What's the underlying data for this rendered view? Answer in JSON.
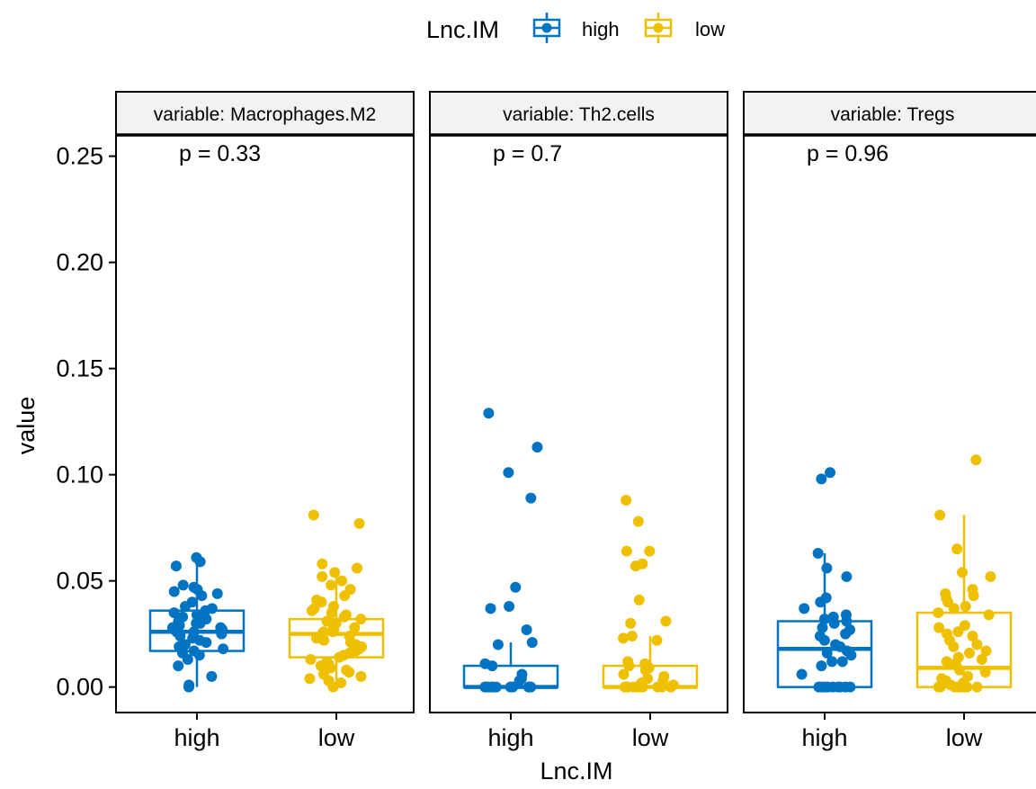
{
  "legend": {
    "title": "Lnc.IM",
    "entries": [
      {
        "label": "high",
        "color": "#0073C2"
      },
      {
        "label": "low",
        "color": "#EFC000"
      }
    ]
  },
  "colors": {
    "high": "#0073C2",
    "low": "#EFC000",
    "strip_fill": "#f2f2f2"
  },
  "chart_data": {
    "type": "box",
    "legend_position": "top",
    "xlabel": "Lnc.IM",
    "ylabel": "value",
    "ylim": [
      -0.012,
      0.26
    ],
    "yticks": [
      0.0,
      0.05,
      0.1,
      0.15,
      0.2,
      0.25
    ],
    "ytick_labels": [
      "0.00",
      "0.05",
      "0.10",
      "0.15",
      "0.20",
      "0.25"
    ],
    "categories": [
      "high",
      "low"
    ],
    "facets": [
      {
        "strip": "variable: Macrophages.M2",
        "p_label": "p = 0.33",
        "groups": [
          {
            "category": "high",
            "q1": 0.017,
            "median": 0.026,
            "q3": 0.036,
            "whisker_low": 0.0,
            "whisker_high": 0.061,
            "points": [
              0.061,
              0.059,
              0.057,
              0.048,
              0.047,
              0.046,
              0.045,
              0.044,
              0.043,
              0.04,
              0.038,
              0.037,
              0.036,
              0.035,
              0.034,
              0.033,
              0.032,
              0.031,
              0.03,
              0.03,
              0.029,
              0.028,
              0.028,
              0.027,
              0.026,
              0.026,
              0.025,
              0.024,
              0.023,
              0.022,
              0.021,
              0.02,
              0.019,
              0.018,
              0.017,
              0.016,
              0.015,
              0.013,
              0.01,
              0.005,
              0.001,
              0.0
            ]
          },
          {
            "category": "low",
            "q1": 0.014,
            "median": 0.025,
            "q3": 0.032,
            "whisker_low": 0.0,
            "whisker_high": 0.056,
            "points": [
              0.081,
              0.077,
              0.058,
              0.056,
              0.054,
              0.052,
              0.05,
              0.048,
              0.046,
              0.043,
              0.041,
              0.04,
              0.038,
              0.037,
              0.036,
              0.035,
              0.034,
              0.033,
              0.032,
              0.031,
              0.03,
              0.03,
              0.029,
              0.028,
              0.027,
              0.026,
              0.026,
              0.025,
              0.024,
              0.023,
              0.022,
              0.021,
              0.02,
              0.019,
              0.018,
              0.017,
              0.016,
              0.015,
              0.014,
              0.013,
              0.012,
              0.011,
              0.01,
              0.009,
              0.008,
              0.007,
              0.006,
              0.005,
              0.004,
              0.003,
              0.002,
              0.0
            ]
          }
        ]
      },
      {
        "strip": "variable: Th2.cells",
        "p_label": "p = 0.7",
        "groups": [
          {
            "category": "high",
            "q1": 0.0,
            "median": 0.0,
            "q3": 0.01,
            "whisker_low": 0.0,
            "whisker_high": 0.021,
            "points": [
              0.129,
              0.113,
              0.101,
              0.089,
              0.047,
              0.038,
              0.037,
              0.027,
              0.021,
              0.02,
              0.011,
              0.01,
              0.006,
              0.004,
              0.003,
              0.0,
              0.0,
              0.0,
              0.0,
              0.0,
              0.0,
              0.0,
              0.0,
              0.0,
              0.0,
              0.0,
              0.0
            ]
          },
          {
            "category": "low",
            "q1": 0.0,
            "median": 0.0,
            "q3": 0.01,
            "whisker_low": 0.0,
            "whisker_high": 0.024,
            "points": [
              0.088,
              0.078,
              0.064,
              0.064,
              0.058,
              0.057,
              0.041,
              0.031,
              0.03,
              0.024,
              0.023,
              0.022,
              0.012,
              0.011,
              0.01,
              0.009,
              0.008,
              0.006,
              0.005,
              0.004,
              0.003,
              0.002,
              0.001,
              0.0,
              0.0,
              0.0,
              0.0,
              0.0,
              0.0,
              0.0,
              0.0,
              0.0,
              0.0,
              0.0
            ]
          }
        ]
      },
      {
        "strip": "variable: Tregs",
        "p_label": "p = 0.96",
        "groups": [
          {
            "category": "high",
            "q1": 0.0,
            "median": 0.018,
            "q3": 0.031,
            "whisker_low": 0.0,
            "whisker_high": 0.063,
            "points": [
              0.101,
              0.098,
              0.063,
              0.056,
              0.052,
              0.042,
              0.04,
              0.037,
              0.034,
              0.033,
              0.032,
              0.031,
              0.03,
              0.028,
              0.027,
              0.025,
              0.024,
              0.022,
              0.02,
              0.019,
              0.017,
              0.016,
              0.015,
              0.012,
              0.012,
              0.01,
              0.006,
              0.0,
              0.0,
              0.0,
              0.0,
              0.0,
              0.0,
              0.0,
              0.0,
              0.0
            ]
          },
          {
            "category": "low",
            "q1": 0.0,
            "median": 0.009,
            "q3": 0.035,
            "whisker_low": 0.0,
            "whisker_high": 0.081,
            "points": [
              0.107,
              0.081,
              0.065,
              0.054,
              0.052,
              0.046,
              0.044,
              0.043,
              0.042,
              0.04,
              0.038,
              0.037,
              0.035,
              0.034,
              0.029,
              0.028,
              0.026,
              0.025,
              0.024,
              0.022,
              0.02,
              0.019,
              0.017,
              0.016,
              0.014,
              0.013,
              0.012,
              0.011,
              0.008,
              0.007,
              0.005,
              0.004,
              0.003,
              0.002,
              0.001,
              0.0,
              0.0,
              0.0,
              0.0,
              0.0,
              0.0,
              0.0,
              0.0
            ]
          }
        ]
      }
    ]
  }
}
